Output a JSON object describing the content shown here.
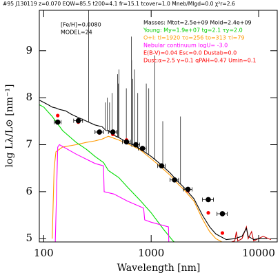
{
  "chart_data": {
    "type": "line",
    "title": "#95 J130119 z=0.070 EQW=85.5 t200=4.1 fr=15.1 tcover=1.0 Mneb/Mlgd=0.0 χ²r=2.6",
    "annotations": [
      {
        "text": "[Fe/H]=0.0080",
        "color": "#000000"
      },
      {
        "text": "MODEL=24",
        "color": "#000000"
      },
      {
        "text": "Masses: Mtot=2.5e+09 Mold=2.4e+09",
        "color": "#000000"
      },
      {
        "text": "Young: My=1.9e+07 tg=2.1 τy=2.0",
        "color": "#00cc00"
      },
      {
        "text": "O+I: tI=1920 τo=256 to=313 τI=79",
        "color": "#ff9900"
      },
      {
        "text": "Nebular continuum logU= -3.0",
        "color": "#ff00ff"
      },
      {
        "text": "E(B-V)=0.04 Esc=0.0 Dustab=0.0",
        "color": "#ff0000"
      },
      {
        "text": "Dust:α=2.5 γ=0.1 qPAH=0.47 Umin=0.1",
        "color": "#ff0000"
      }
    ],
    "x_label": "Wavelength [nm]",
    "y_label": "log Lλ/L⊙ [nm⁻¹]",
    "log_x": true,
    "xlim": [
      91,
      14900
    ],
    "ylim": [
      4.93,
      9.86
    ],
    "xticks": [
      100,
      1000,
      10000
    ],
    "yticks": [
      5,
      6,
      7,
      8,
      9
    ],
    "series": [
      {
        "color": "#ff9900",
        "x": [
          120,
          125,
          130,
          150,
          200,
          250,
          300,
          350,
          400,
          500,
          600,
          700,
          800,
          1000,
          1200,
          1500,
          1800,
          2000,
          2500,
          3000,
          3500,
          4000,
          5000
        ],
        "values": [
          5.0,
          6.5,
          6.85,
          6.95,
          7.0,
          7.05,
          7.08,
          7.12,
          7.18,
          7.1,
          7.02,
          6.95,
          6.88,
          6.7,
          6.55,
          6.35,
          6.15,
          6.05,
          5.8,
          5.42,
          5.15,
          5.0,
          4.88
        ]
      },
      {
        "color": "#00dd00",
        "x": [
          91,
          100,
          120,
          150,
          200,
          250,
          300,
          360,
          400,
          500,
          600,
          800,
          1000,
          1300,
          1600,
          1800
        ],
        "values": [
          7.85,
          7.8,
          7.6,
          7.3,
          7.05,
          6.9,
          6.75,
          6.62,
          6.45,
          6.3,
          6.1,
          5.8,
          5.55,
          5.2,
          4.95,
          4.85
        ]
      },
      {
        "color": "#ff00ff",
        "x": [
          128,
          135,
          140,
          200,
          300,
          360,
          365,
          450,
          600,
          850,
          870,
          1000,
          1450,
          1460,
          2000
        ],
        "values": [
          4.9,
          6.95,
          7.0,
          6.8,
          6.6,
          6.55,
          6.0,
          5.95,
          5.8,
          5.65,
          5.4,
          5.35,
          5.25,
          4.9,
          4.85
        ]
      },
      {
        "color": "#cc0000",
        "x": [
          3000,
          5000,
          6000,
          6200,
          6400,
          7000,
          7700,
          8000,
          8600,
          9000,
          11000,
          13000
        ],
        "values": [
          4.85,
          4.9,
          4.95,
          5.15,
          4.95,
          5.0,
          5.25,
          5.0,
          5.15,
          4.95,
          5.05,
          4.98
        ]
      },
      {
        "color": "#000000",
        "x": [
          91,
          100,
          110,
          120,
          130,
          140,
          160,
          180,
          200,
          250,
          300,
          350,
          380,
          400,
          450,
          500,
          600,
          700,
          800,
          1000,
          1200,
          1500,
          1800,
          2000,
          2500,
          3000,
          3500,
          4000,
          5000,
          6000,
          7000,
          7700,
          8000,
          9000,
          10000,
          12000
        ],
        "values": [
          7.95,
          7.9,
          7.85,
          7.8,
          7.78,
          7.75,
          7.72,
          7.65,
          7.6,
          7.5,
          7.42,
          7.38,
          7.3,
          7.3,
          7.2,
          7.15,
          7.05,
          6.98,
          6.9,
          6.75,
          6.6,
          6.4,
          6.2,
          6.1,
          5.85,
          5.5,
          5.25,
          5.1,
          4.98,
          5.0,
          5.05,
          5.22,
          5.05,
          4.98,
          5.0,
          5.0
        ]
      }
    ],
    "emission_lines": {
      "color": "#000000",
      "x": [
        262,
        373,
        390,
        410,
        434,
        486,
        496,
        501,
        587,
        656,
        658,
        672,
        700,
        750,
        900,
        950,
        1083,
        1282,
        1875
      ],
      "values": [
        9.86,
        7.9,
        8.0,
        7.9,
        8.1,
        8.5,
        8.3,
        8.6,
        8.2,
        9.3,
        8.8,
        8.4,
        8.6,
        8.1,
        8.3,
        8.2,
        8.9,
        7.5,
        7.6
      ]
    },
    "model_photometry": {
      "color": "#ff0000",
      "x": [
        135,
        210,
        330,
        440,
        590,
        720,
        830,
        1250,
        1650,
        2200,
        3400,
        4600
      ],
      "values": [
        7.62,
        7.48,
        7.25,
        7.22,
        7.1,
        7.0,
        6.9,
        6.55,
        6.24,
        6.02,
        5.55,
        5.12
      ]
    },
    "observations": {
      "color": "#000000",
      "x": [
        135,
        210,
        330,
        440,
        590,
        720,
        830,
        1250,
        1650,
        2200,
        3400,
        4600
      ],
      "values": [
        7.48,
        7.51,
        7.27,
        7.27,
        7.06,
        7.0,
        6.92,
        6.55,
        6.25,
        6.05,
        5.83,
        5.53
      ],
      "xerr": [
        10,
        20,
        30,
        40,
        50,
        60,
        70,
        100,
        150,
        200,
        400,
        500
      ]
    }
  }
}
